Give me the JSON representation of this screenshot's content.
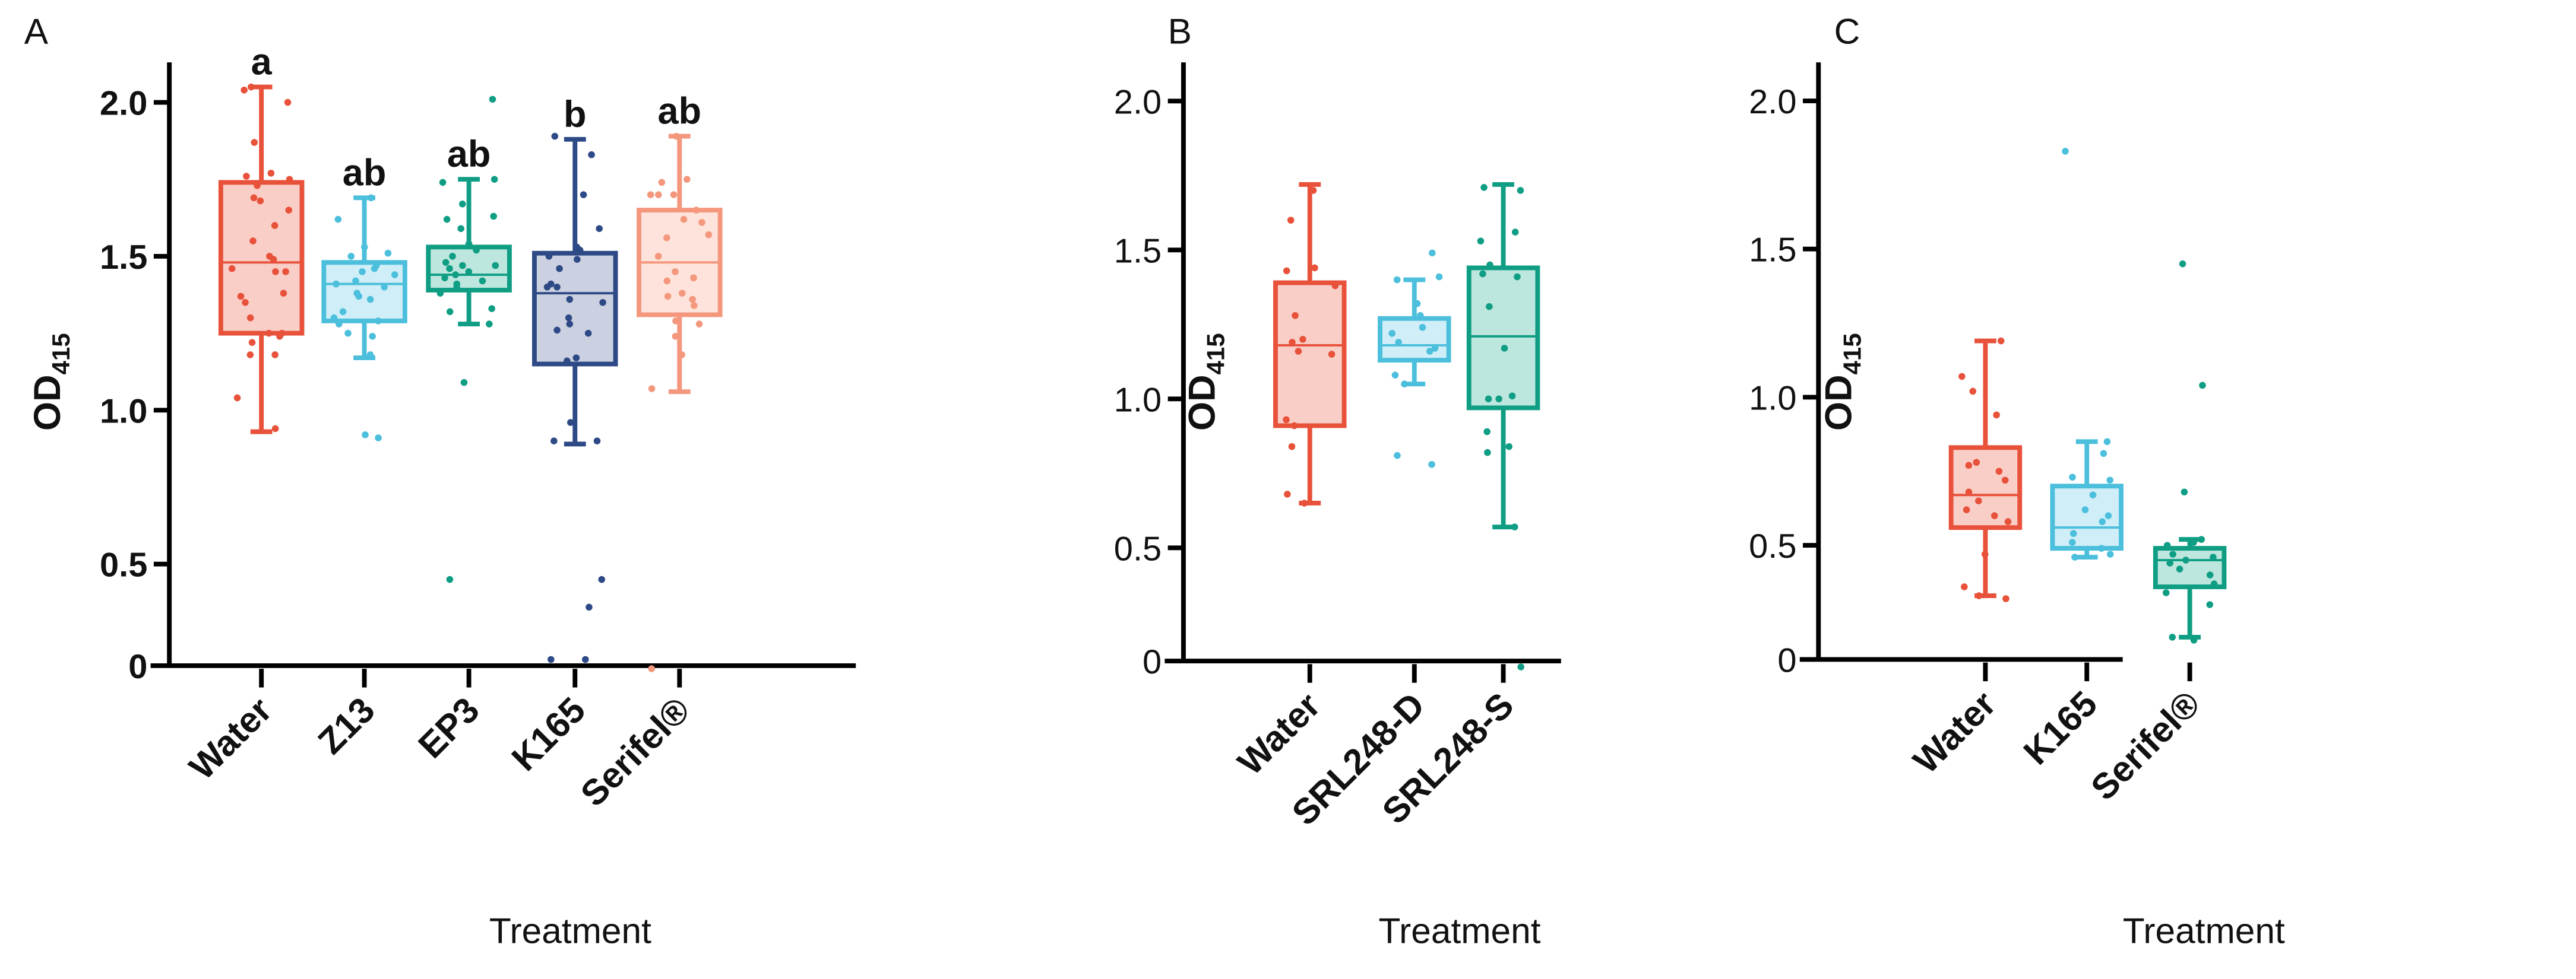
{
  "chart_data": [
    {
      "type": "box",
      "panel_label": "A",
      "xlabel": "Treatment",
      "ylabel": "OD",
      "ylabel_sub": "415",
      "ylim": [
        0.17,
        2.13
      ],
      "ytick_labels": [
        "2.0",
        "1.5",
        "1.0",
        "0.5",
        "0"
      ],
      "ytick_values": [
        2.0,
        1.5,
        1.0,
        0.5,
        0.17
      ],
      "groups": [
        {
          "name": "Water",
          "sig": "a",
          "color": "#e8513a",
          "fill": "#f8cec7",
          "whisker_high": 2.05,
          "q3": 1.74,
          "median": 1.48,
          "q1": 1.25,
          "whisker_low": 0.93,
          "points": [
            2.05,
            2.04,
            2.0,
            1.87,
            1.77,
            1.76,
            1.75,
            1.73,
            1.69,
            1.68,
            1.65,
            1.6,
            1.55,
            1.5,
            1.49,
            1.46,
            1.45,
            1.45,
            1.38,
            1.37,
            1.35,
            1.3,
            1.25,
            1.25,
            1.24,
            1.22,
            1.18,
            1.18,
            1.04,
            0.94
          ]
        },
        {
          "name": "Z13",
          "sig": "ab",
          "color": "#4bbfdc",
          "fill": "#d0eef7",
          "whisker_high": 1.69,
          "q3": 1.48,
          "median": 1.41,
          "q1": 1.29,
          "whisker_low": 1.17,
          "points": [
            1.69,
            1.62,
            1.53,
            1.51,
            1.5,
            1.47,
            1.46,
            1.45,
            1.44,
            1.42,
            1.41,
            1.4,
            1.38,
            1.37,
            1.36,
            1.32,
            1.3,
            1.29,
            1.28,
            1.25,
            1.24,
            1.18,
            0.92,
            0.91
          ]
        },
        {
          "name": "EP3",
          "sig": "ab",
          "color": "#0f9e84",
          "fill": "#bde6de",
          "whisker_high": 1.75,
          "q3": 1.53,
          "median": 1.44,
          "q1": 1.39,
          "whisker_low": 1.28,
          "points": [
            2.01,
            1.75,
            1.74,
            1.67,
            1.63,
            1.62,
            1.59,
            1.54,
            1.52,
            1.5,
            1.48,
            1.47,
            1.47,
            1.46,
            1.45,
            1.44,
            1.43,
            1.42,
            1.41,
            1.4,
            1.38,
            1.33,
            1.32,
            1.28,
            1.09,
            0.45
          ]
        },
        {
          "name": "K165",
          "sig": "b",
          "color": "#2e4a86",
          "fill": "#cbd1e1",
          "whisker_high": 1.88,
          "q3": 1.51,
          "median": 1.38,
          "q1": 1.15,
          "whisker_low": 0.89,
          "points": [
            1.89,
            1.83,
            1.7,
            1.59,
            1.53,
            1.52,
            1.5,
            1.49,
            1.46,
            1.41,
            1.4,
            1.4,
            1.36,
            1.35,
            1.3,
            1.28,
            1.26,
            1.25,
            1.17,
            1.16,
            0.96,
            0.9,
            0.9,
            0.45,
            0.36,
            0.19,
            0.19
          ]
        },
        {
          "name": "Serifel®",
          "sig": "ab",
          "color": "#f4977c",
          "fill": "#fde3db",
          "whisker_high": 1.89,
          "q3": 1.65,
          "median": 1.48,
          "q1": 1.31,
          "whisker_low": 1.06,
          "points": [
            1.89,
            1.75,
            1.74,
            1.7,
            1.7,
            1.7,
            1.65,
            1.62,
            1.61,
            1.57,
            1.56,
            1.5,
            1.45,
            1.43,
            1.42,
            1.38,
            1.37,
            1.36,
            1.34,
            1.29,
            1.28,
            1.24,
            1.18,
            1.07,
            0.16
          ]
        }
      ]
    },
    {
      "type": "box",
      "panel_label": "B",
      "xlabel": "Treatment",
      "ylabel": "OD",
      "ylabel_sub": "415",
      "ylim": [
        0.12,
        2.13
      ],
      "ytick_labels": [
        "2.0",
        "1.5",
        "1.0",
        "0.5",
        "0"
      ],
      "ytick_values": [
        2.0,
        1.5,
        1.0,
        0.5,
        0.12
      ],
      "groups": [
        {
          "name": "Water",
          "color": "#e8513a",
          "fill": "#f8cec7",
          "whisker_high": 1.72,
          "q3": 1.39,
          "median": 1.18,
          "q1": 0.91,
          "whisker_low": 0.65,
          "points": [
            1.7,
            1.6,
            1.44,
            1.43,
            1.38,
            1.28,
            1.2,
            1.19,
            1.16,
            1.15,
            0.93,
            0.91,
            0.84,
            0.68,
            0.65
          ]
        },
        {
          "name": "SRL248-D",
          "color": "#4bbfdc",
          "fill": "#d0eef7",
          "whisker_high": 1.4,
          "q3": 1.27,
          "median": 1.18,
          "q1": 1.13,
          "whisker_low": 1.05,
          "points": [
            1.49,
            1.41,
            1.4,
            1.32,
            1.28,
            1.24,
            1.22,
            1.19,
            1.17,
            1.16,
            1.08,
            1.05,
            0.81,
            0.78
          ]
        },
        {
          "name": "SRL248-S",
          "color": "#0f9e84",
          "fill": "#bde6de",
          "whisker_high": 1.72,
          "q3": 1.44,
          "median": 1.21,
          "q1": 0.97,
          "whisker_low": 0.57,
          "points": [
            1.71,
            1.7,
            1.56,
            1.53,
            1.45,
            1.42,
            1.41,
            1.31,
            1.17,
            1.01,
            1.0,
            1.0,
            0.89,
            0.84,
            0.82,
            0.57,
            0.1
          ]
        }
      ]
    },
    {
      "type": "box",
      "panel_label": "C",
      "xlabel": "Treatment",
      "ylabel": "OD",
      "ylabel_sub": "415",
      "ylim": [
        0.115,
        2.13
      ],
      "ytick_labels": [
        "2.0",
        "1.5",
        "1.0",
        "0.5",
        "0"
      ],
      "ytick_values": [
        2.0,
        1.5,
        1.0,
        0.5,
        0.115
      ],
      "groups": [
        {
          "name": "Water",
          "color": "#e8513a",
          "fill": "#f8cec7",
          "whisker_high": 1.19,
          "q3": 0.83,
          "median": 0.67,
          "q1": 0.56,
          "whisker_low": 0.33,
          "points": [
            1.19,
            1.07,
            1.02,
            0.94,
            0.78,
            0.77,
            0.75,
            0.72,
            0.68,
            0.65,
            0.62,
            0.6,
            0.58,
            0.47,
            0.36,
            0.32,
            0.33
          ]
        },
        {
          "name": "K165",
          "color": "#4bbfdc",
          "fill": "#d0eef7",
          "whisker_high": 0.85,
          "q3": 0.7,
          "median": 0.56,
          "q1": 0.49,
          "whisker_low": 0.46,
          "points": [
            1.83,
            0.85,
            0.81,
            0.73,
            0.72,
            0.67,
            0.62,
            0.6,
            0.58,
            0.54,
            0.51,
            0.49,
            0.47,
            0.46
          ]
        },
        {
          "name": "Serifel®",
          "color": "#0f9e84",
          "fill": "#bde6de",
          "whisker_high": 0.52,
          "q3": 0.49,
          "median": 0.45,
          "q1": 0.36,
          "whisker_low": 0.19,
          "points": [
            1.45,
            1.04,
            0.68,
            0.52,
            0.51,
            0.5,
            0.47,
            0.46,
            0.45,
            0.44,
            0.42,
            0.4,
            0.37,
            0.34,
            0.3,
            0.19,
            0.18
          ]
        }
      ]
    }
  ]
}
